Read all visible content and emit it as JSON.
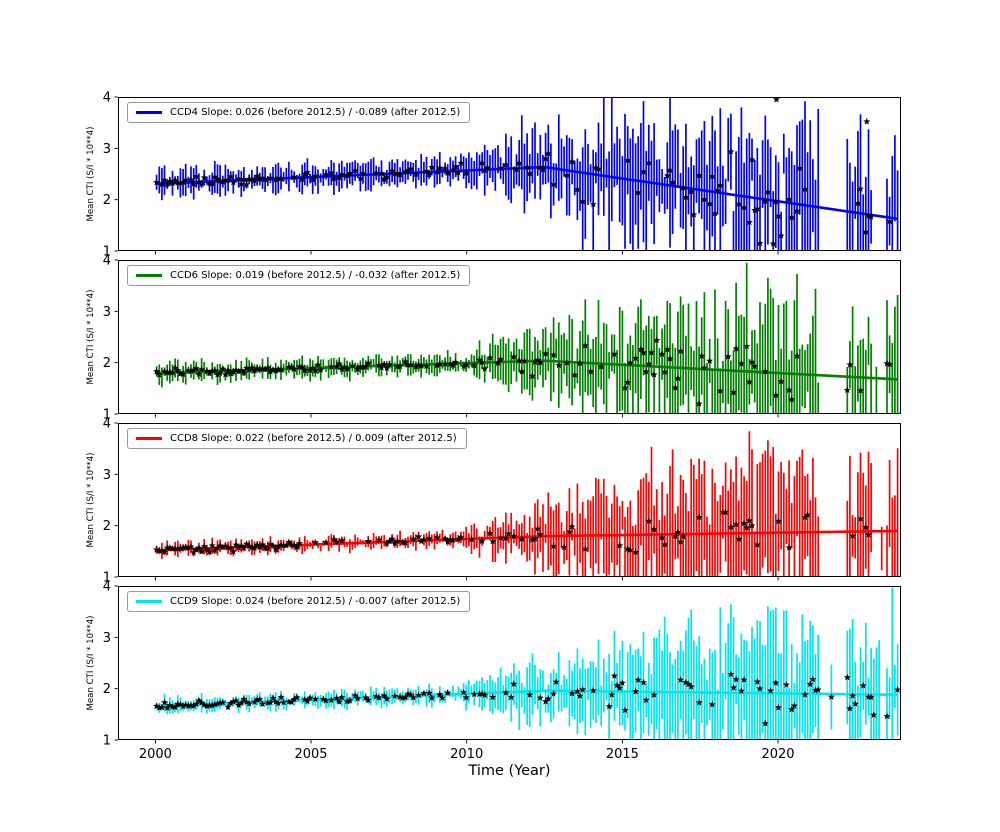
{
  "figure": {
    "background": "#ffffff"
  },
  "chart_data": {
    "type": "line",
    "subtype": "errorbar-scatter-with-piecewise-fit",
    "title": "",
    "xlabel": "Time (Year)",
    "ylabel": "Mean CTI (S/I * 10**4)",
    "xlim": [
      1998.8,
      2023.95
    ],
    "ylim": [
      1,
      4
    ],
    "xticks": [
      2000,
      2005,
      2010,
      2015,
      2020
    ],
    "yticks": [
      1,
      2,
      3,
      4
    ],
    "grid": false,
    "legend_position": "upper left",
    "break_year": 2012.5,
    "data_start": 2000.0,
    "data_end": 2023.85,
    "data_gaps": [
      {
        "from": 2021.3,
        "to": 2022.2,
        "keep": 0.07
      },
      {
        "from": 2023.05,
        "to": 2023.45,
        "keep": 0.25
      }
    ],
    "marker": {
      "shape": "star",
      "color": "#000000"
    },
    "panels": [
      {
        "name": "CCD4",
        "legend": "CCD4 Slope: 0.026 (before 2012.5) / -0.089 (after 2012.5)",
        "color": "#0000ff",
        "slope_before": 0.026,
        "slope_after": -0.089,
        "value_2000": 2.31,
        "err_early": 0.2,
        "err_late": 1.1,
        "scatter_early": 0.05,
        "scatter_late": 0.45,
        "outliers": [
          [
            2019.95,
            3.95
          ],
          [
            2022.85,
            3.52
          ]
        ]
      },
      {
        "name": "CCD6",
        "legend": "CCD6 Slope: 0.019 (before 2012.5) / -0.032 (after 2012.5)",
        "color": "#008000",
        "slope_before": 0.019,
        "slope_after": -0.032,
        "value_2000": 1.8,
        "err_early": 0.14,
        "err_late": 1.05,
        "scatter_early": 0.04,
        "scatter_late": 0.32,
        "outliers": []
      },
      {
        "name": "CCD8",
        "legend": "CCD8 Slope: 0.022 (before 2012.5) / 0.009 (after 2012.5)",
        "color": "#ff0000",
        "slope_before": 0.022,
        "slope_after": 0.009,
        "value_2000": 1.52,
        "err_early": 0.1,
        "err_late": 1.1,
        "scatter_early": 0.04,
        "scatter_late": 0.33,
        "outliers": []
      },
      {
        "name": "CCD9",
        "legend": "CCD9 Slope: 0.024 (before 2012.5) / -0.007 (after 2012.5)",
        "color": "#00e5ee",
        "slope_before": 0.024,
        "slope_after": -0.007,
        "value_2000": 1.66,
        "err_early": 0.12,
        "err_late": 1.0,
        "scatter_early": 0.04,
        "scatter_late": 0.3,
        "outliers": []
      }
    ]
  }
}
